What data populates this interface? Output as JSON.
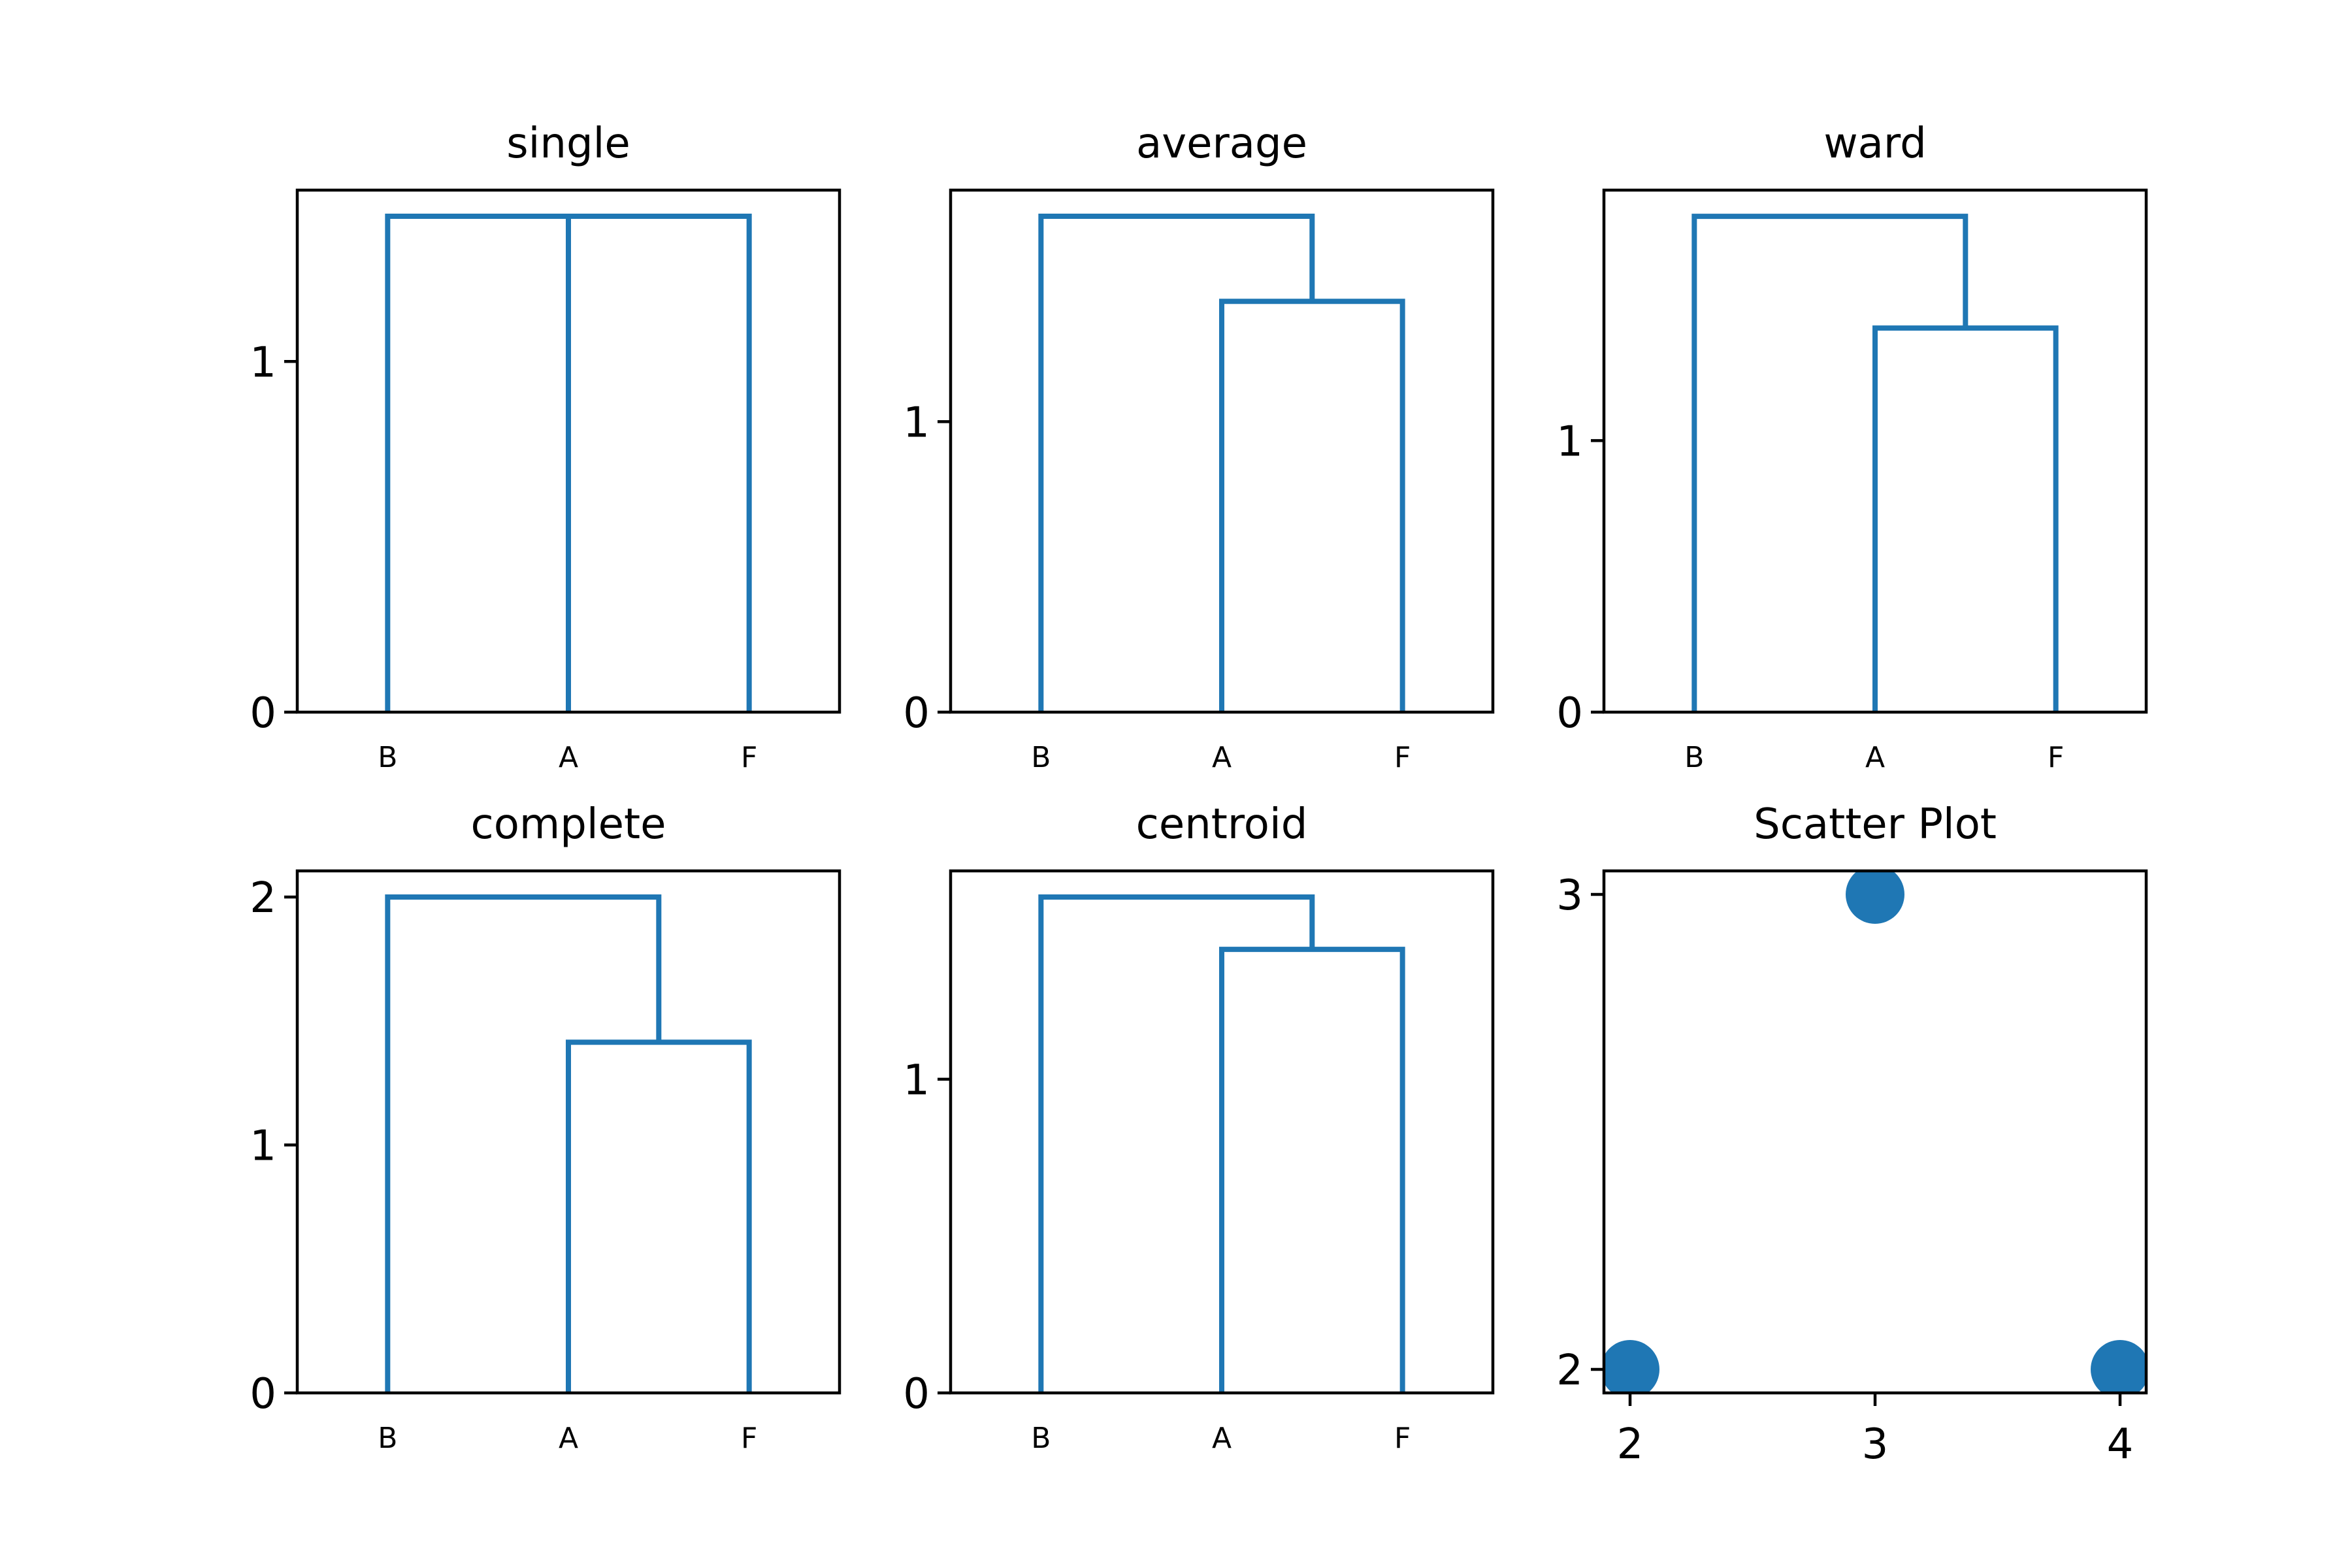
{
  "chart_data": [
    {
      "type": "dendrogram",
      "title": "single",
      "leaves": [
        "B",
        "A",
        "F"
      ],
      "ylim": [
        0,
        1.4142
      ],
      "yticks": [
        0,
        1
      ],
      "merges": [
        {
          "left": "B",
          "right": "A",
          "height": 1.4142
        },
        {
          "left": "B+A",
          "right": "F",
          "height": 1.4142
        }
      ],
      "color": "#1f77b4"
    },
    {
      "type": "dendrogram",
      "title": "average",
      "leaves": [
        "B",
        "A",
        "F"
      ],
      "ylim": [
        0,
        1.707
      ],
      "yticks": [
        0,
        1
      ],
      "merges": [
        {
          "left": "A",
          "right": "F",
          "height": 1.4142
        },
        {
          "left": "B",
          "right": "A+F",
          "height": 1.7071
        }
      ],
      "color": "#1f77b4"
    },
    {
      "type": "dendrogram",
      "title": "ward",
      "leaves": [
        "B",
        "A",
        "F"
      ],
      "ylim": [
        0,
        1.826
      ],
      "yticks": [
        0,
        1
      ],
      "merges": [
        {
          "left": "A",
          "right": "F",
          "height": 1.4142
        },
        {
          "left": "B",
          "right": "A+F",
          "height": 1.8257
        }
      ],
      "color": "#1f77b4"
    },
    {
      "type": "dendrogram",
      "title": "complete",
      "leaves": [
        "B",
        "A",
        "F"
      ],
      "ylim": [
        0,
        2
      ],
      "yticks": [
        0,
        1,
        2
      ],
      "merges": [
        {
          "left": "A",
          "right": "F",
          "height": 1.4142
        },
        {
          "left": "B",
          "right": "A+F",
          "height": 2.0
        }
      ],
      "color": "#1f77b4"
    },
    {
      "type": "dendrogram",
      "title": "centroid",
      "leaves": [
        "B",
        "A",
        "F"
      ],
      "ylim": [
        0,
        1.581
      ],
      "yticks": [
        0,
        1
      ],
      "merges": [
        {
          "left": "A",
          "right": "F",
          "height": 1.4142
        },
        {
          "left": "B",
          "right": "A+F",
          "height": 1.5811
        }
      ],
      "color": "#1f77b4"
    },
    {
      "type": "scatter",
      "title": "Scatter Plot",
      "x": [
        2,
        3,
        4
      ],
      "y": [
        2,
        3,
        2
      ],
      "xlim": [
        2,
        4
      ],
      "ylim": [
        2,
        3
      ],
      "xticks": [
        2,
        3,
        4
      ],
      "yticks": [
        2,
        3
      ],
      "color": "#1f77b4"
    }
  ]
}
